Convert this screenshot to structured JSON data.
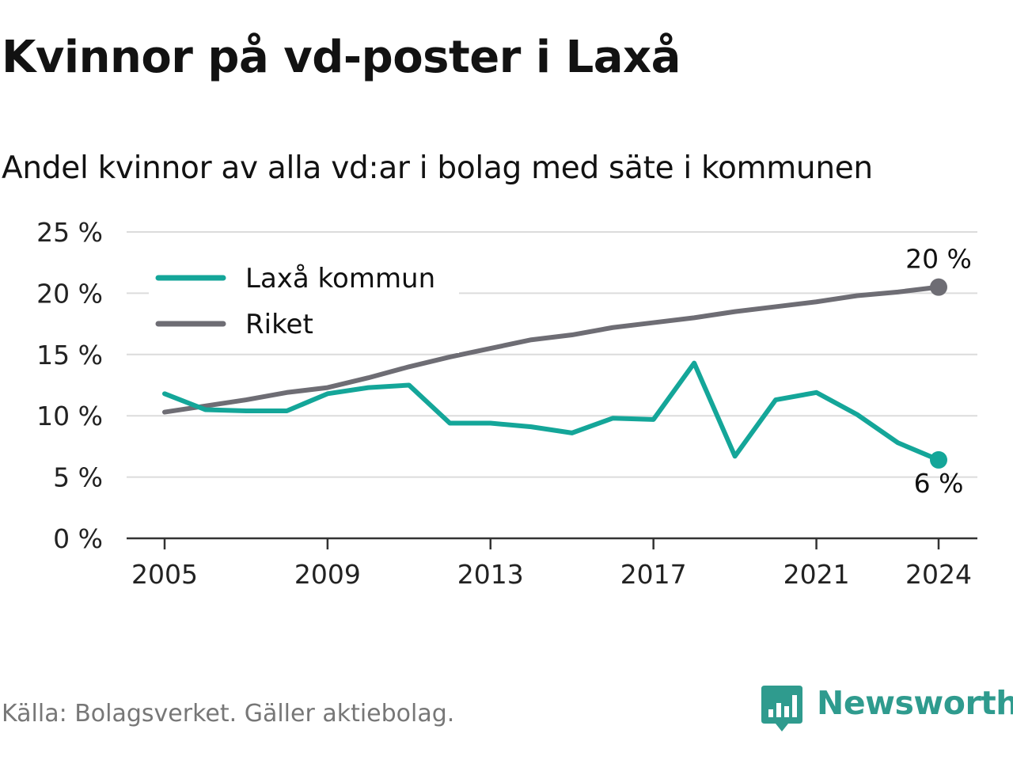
{
  "header": {
    "title": "Kvinnor på vd-poster i Laxå",
    "subtitle": "Andel kvinnor av alla vd:ar i bolag med säte i kommunen"
  },
  "footer": {
    "source": "Källa: Bolagsverket. Gäller aktiebolag.",
    "brand": "Newsworthy"
  },
  "colors": {
    "laxa": "#14a699",
    "riket": "#6e6d74",
    "grid": "#dcdcdc",
    "axis": "#333333",
    "brand": "#2f9b8e"
  },
  "chart_data": {
    "type": "line",
    "x": [
      2005,
      2006,
      2007,
      2008,
      2009,
      2010,
      2011,
      2012,
      2013,
      2014,
      2015,
      2016,
      2017,
      2018,
      2019,
      2020,
      2021,
      2022,
      2023,
      2024
    ],
    "series": [
      {
        "name": "Laxå kommun",
        "color": "#14a699",
        "values": [
          11.8,
          10.5,
          10.4,
          10.4,
          11.8,
          12.3,
          12.5,
          9.4,
          9.4,
          9.1,
          8.6,
          9.8,
          9.7,
          14.3,
          6.7,
          11.3,
          11.9,
          10.1,
          7.8,
          6.4
        ],
        "end_label": "6 %"
      },
      {
        "name": "Riket",
        "color": "#6e6d74",
        "values": [
          10.3,
          10.8,
          11.3,
          11.9,
          12.3,
          13.1,
          14.0,
          14.8,
          15.5,
          16.2,
          16.6,
          17.2,
          17.6,
          18.0,
          18.5,
          18.9,
          19.3,
          19.8,
          20.1,
          20.5
        ],
        "end_label": "20 %"
      }
    ],
    "ylim": [
      0,
      25
    ],
    "yticks": [
      0,
      5,
      10,
      15,
      20,
      25
    ],
    "ytick_labels": [
      "0 %",
      "5 %",
      "10 %",
      "15 %",
      "20 %",
      "25 %"
    ],
    "xticks": [
      2005,
      2009,
      2013,
      2017,
      2021,
      2024
    ],
    "xtick_labels": [
      "2005",
      "2009",
      "2013",
      "2017",
      "2021",
      "2024"
    ],
    "legend_placement": "top-left",
    "grid": true,
    "xlabel": "",
    "ylabel": ""
  }
}
